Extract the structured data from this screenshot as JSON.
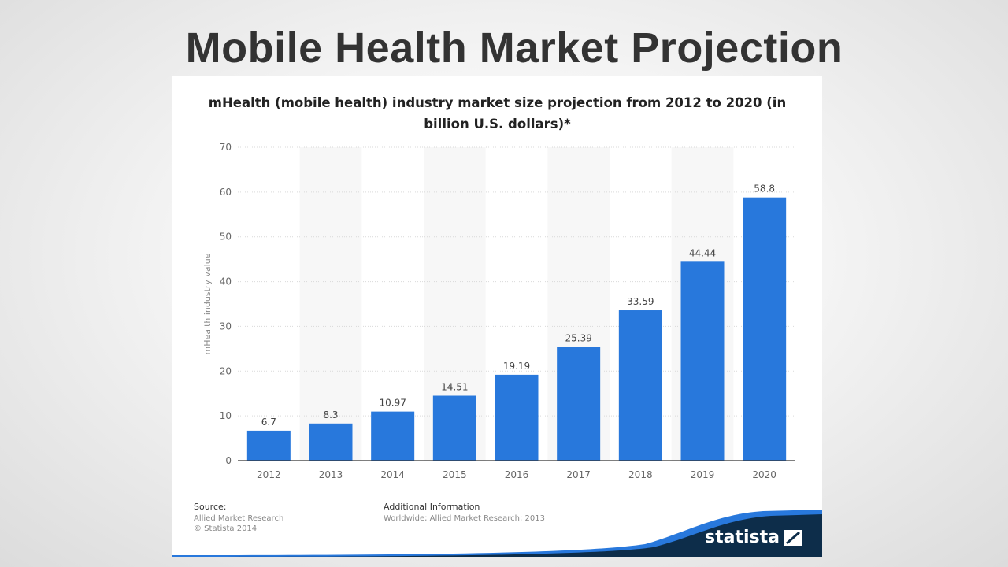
{
  "slide": {
    "title": "Mobile Health Market Projection"
  },
  "chart_data": {
    "type": "bar",
    "title": "mHealth (mobile health) industry market size projection from 2012 to 2020 (in billion U.S. dollars)*",
    "ylabel": "mHealth industry value",
    "xlabel": "",
    "categories": [
      "2012",
      "2013",
      "2014",
      "2015",
      "2016",
      "2017",
      "2018",
      "2019",
      "2020"
    ],
    "values": [
      6.7,
      8.3,
      10.97,
      14.51,
      19.19,
      25.39,
      33.59,
      44.44,
      58.8
    ],
    "value_labels": [
      "6.7",
      "8.3",
      "10.97",
      "14.51",
      "19.19",
      "25.39",
      "33.59",
      "44.44",
      "58.8"
    ],
    "ylim": [
      0,
      70
    ],
    "yticks": [
      "0",
      "10",
      "20",
      "30",
      "40",
      "50",
      "60",
      "70"
    ],
    "grid": true,
    "legend": "none",
    "bar_color": "#2878dc"
  },
  "footer": {
    "source_heading": "Source:",
    "source_lines": [
      "Allied Market Research",
      "© Statista 2014"
    ],
    "info_heading": "Additional Information",
    "info_text": "Worldwide; Allied Market Research; 2013"
  },
  "brand": {
    "name": "statista",
    "color": "#0d2d4a",
    "accent": "#2878dc"
  }
}
